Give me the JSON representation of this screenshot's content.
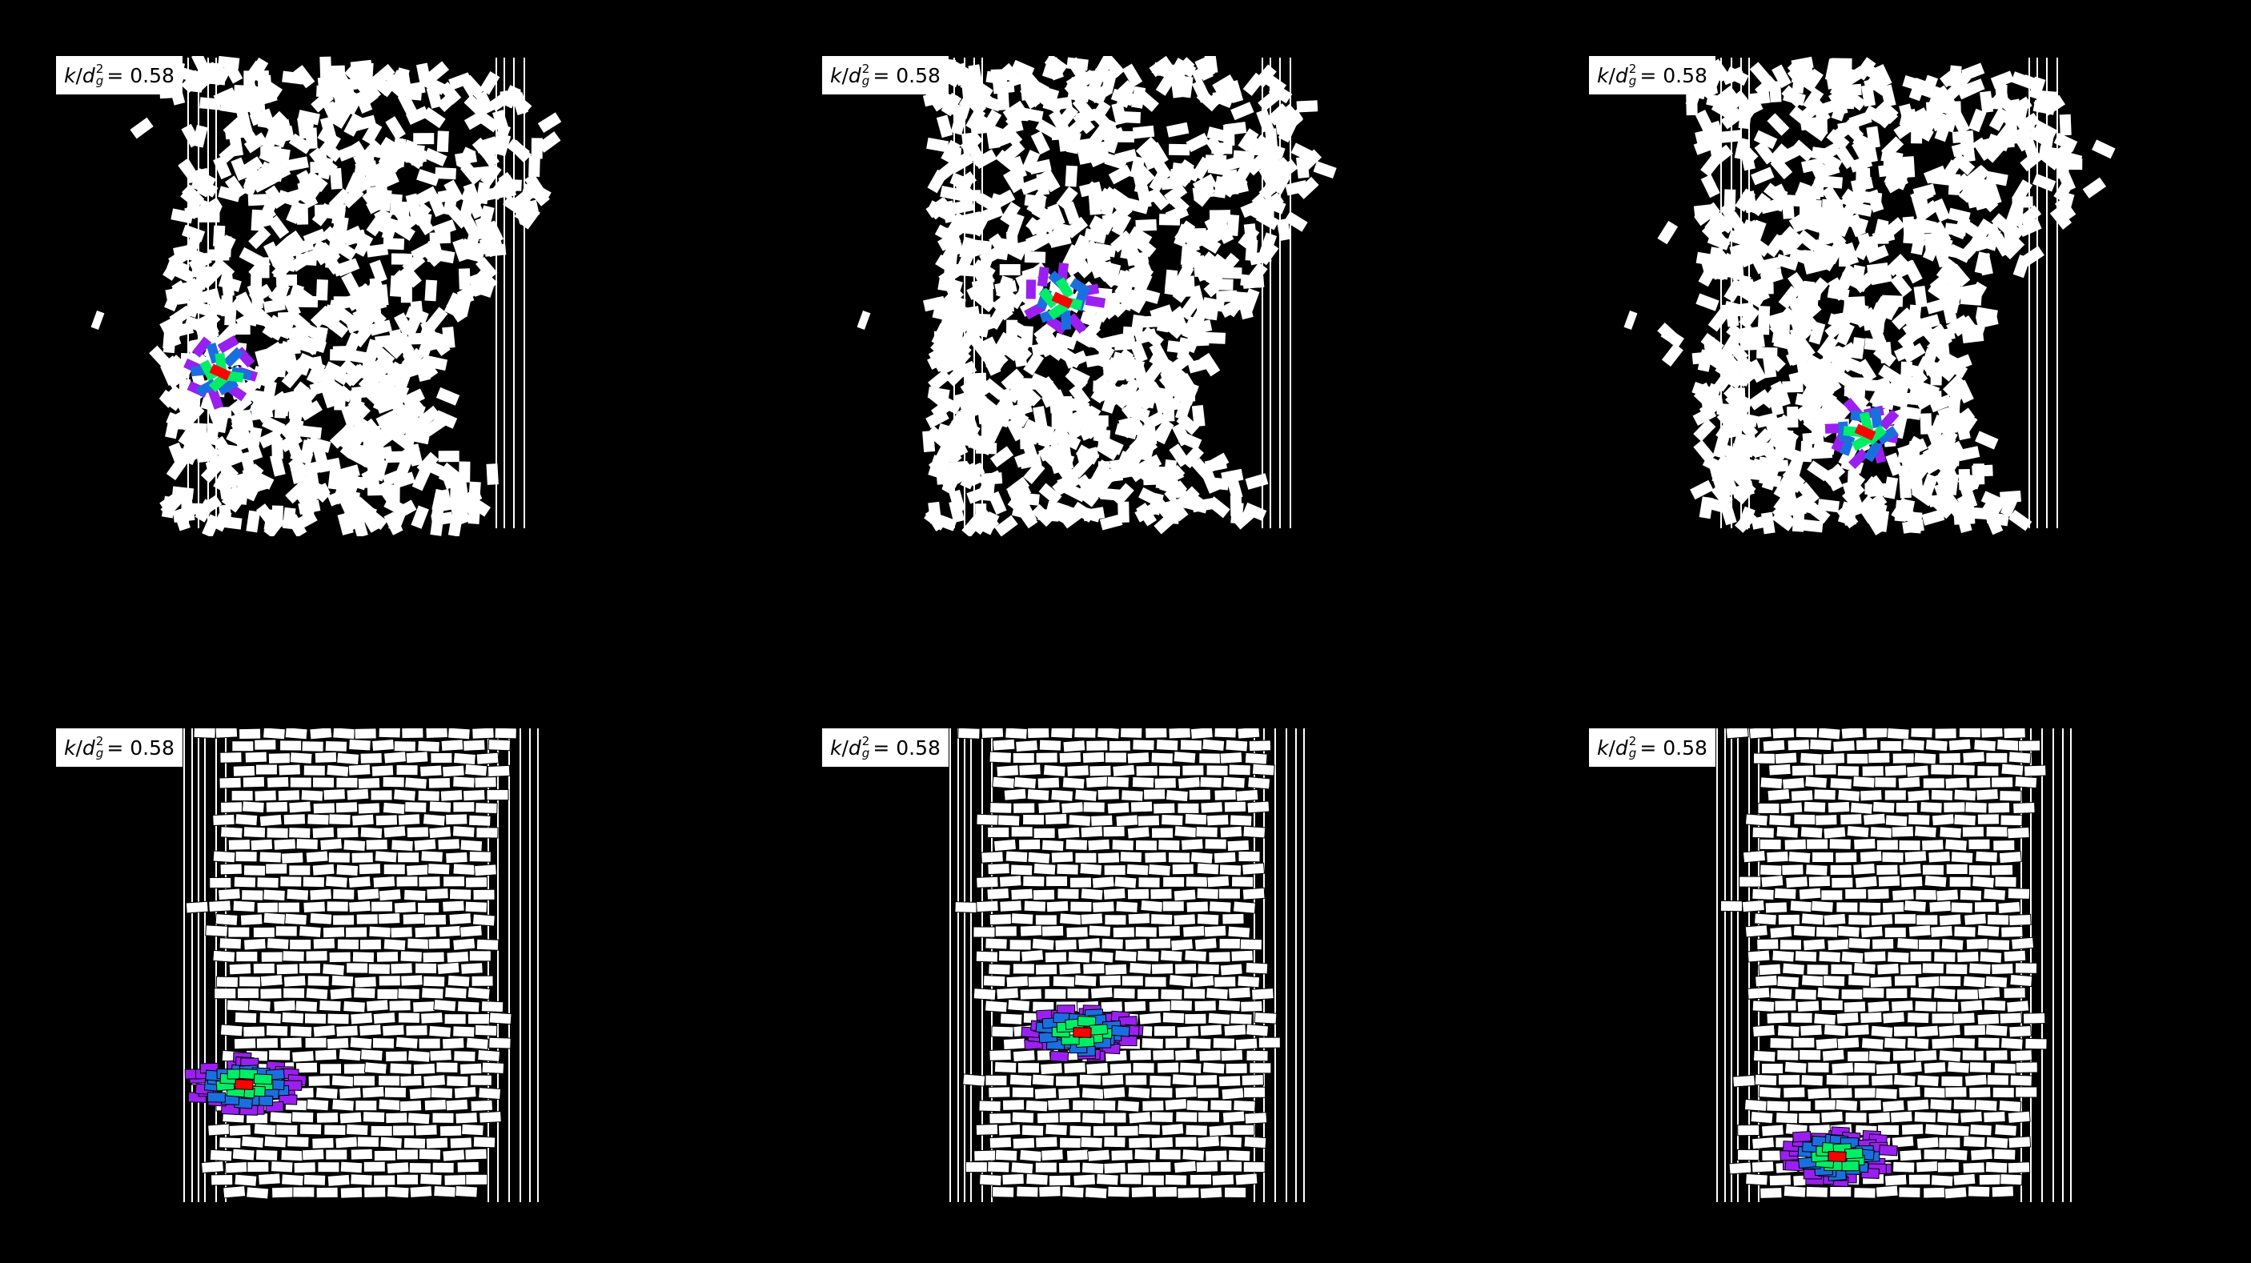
{
  "panels": [
    {
      "id": "p1",
      "row": "loose",
      "label": {
        "k": "k",
        "d": "d",
        "sup": "2",
        "sub": "g",
        "eq": "= 0.58"
      },
      "seed": 11,
      "cluster": [
        [
          205,
          395,
          null
        ]
      ]
    },
    {
      "id": "p2",
      "row": "loose",
      "label": {
        "k": "k",
        "d": "d",
        "sup": "2",
        "sub": "g",
        "eq": "= 0.58"
      },
      "seed": 23,
      "cluster": [
        [
          300,
          305,
          null
        ]
      ]
    },
    {
      "id": "p3",
      "row": "loose",
      "label": {
        "k": "k",
        "d": "d",
        "sup": "2",
        "sub": "g",
        "eq": "= 0.58"
      },
      "seed": 37,
      "cluster": [
        [
          345,
          470,
          null
        ]
      ]
    },
    {
      "id": "p4",
      "row": "packed",
      "label": {
        "k": "k",
        "d": "d",
        "sup": "2",
        "sub": "g",
        "eq": "= 0.58"
      },
      "seed": 41,
      "cluster": [
        [
          235,
          445,
          null
        ]
      ]
    },
    {
      "id": "p5",
      "row": "packed",
      "label": {
        "k": "k",
        "d": "d",
        "sup": "2",
        "sub": "g",
        "eq": "= 0.58"
      },
      "seed": 53,
      "cluster": [
        [
          325,
          380,
          null
        ]
      ]
    },
    {
      "id": "p6",
      "row": "packed",
      "label": {
        "k": "k",
        "d": "d",
        "sup": "2",
        "sub": "g",
        "eq": "= 0.58"
      },
      "seed": 67,
      "cluster": [
        [
          310,
          535,
          null
        ]
      ]
    }
  ],
  "colors": {
    "background": "#000000",
    "grain": "#ffffff",
    "center": "#ff0000",
    "ring1": "#00ee66",
    "ring2": "#1a6fe0",
    "ring3": "#9a1ff0"
  }
}
